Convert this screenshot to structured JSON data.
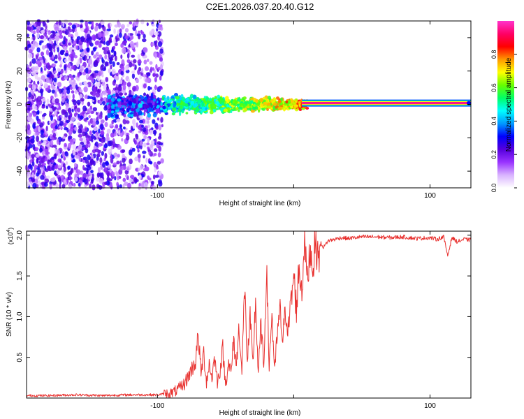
{
  "chart_data": [
    {
      "type": "heatmap",
      "title": "C2E1.2026.037.20.40.G12",
      "xlabel": "Height of straight line (km)",
      "ylabel": "Frequency (Hz)",
      "xlim": [
        -196,
        130
      ],
      "ylim": [
        -50,
        50
      ],
      "x_ticks": [
        -100,
        0,
        100
      ],
      "x_tick_labels": [
        "-100",
        "",
        "100"
      ],
      "y_ticks": [
        -40,
        -20,
        0,
        20,
        40
      ],
      "y_tick_labels": [
        "-40",
        "-20",
        "0",
        "20",
        "40"
      ],
      "colorbar": {
        "label": "Normalized spectral amplitude",
        "range": [
          0,
          1
        ],
        "ticks": [
          0.0,
          0.2,
          0.4,
          0.6,
          0.8
        ],
        "tick_labels": [
          "0.0",
          "0.2",
          "0.4",
          "0.6",
          "0.8"
        ],
        "colors": [
          "#ffffff",
          "#d9b3ff",
          "#9933ff",
          "#5500dd",
          "#0000ff",
          "#0099ff",
          "#00ffff",
          "#00ff66",
          "#66ff00",
          "#ffff00",
          "#ff9900",
          "#ff0000",
          "#ff0066",
          "#ff33cc"
        ]
      },
      "regions": [
        {
          "name": "noise",
          "x_range": [
            -196,
            -96
          ],
          "description_value": "scattered low amplitude 0.1-0.35"
        },
        {
          "name": "transition",
          "x_range": [
            -96,
            10
          ],
          "f_center": 0,
          "f_spread": 4
        },
        {
          "name": "carrier",
          "x_range": [
            10,
            130
          ],
          "f_center": 0,
          "amplitude": 1.0
        }
      ]
    },
    {
      "type": "line",
      "title": "",
      "xlabel": "Height of straight line (km)",
      "ylabel": "SNR (10 * v/v)",
      "y_scale_label": "(x10",
      "y_scale_exp": "4",
      "y_scale_close": ")",
      "xlim": [
        -196,
        130
      ],
      "ylim": [
        0,
        2.05
      ],
      "x_ticks": [
        -100,
        0,
        100
      ],
      "x_tick_labels": [
        "-100",
        "",
        "100"
      ],
      "y_ticks": [
        0.5,
        1.0,
        1.5,
        2.0
      ],
      "y_tick_labels": [
        "0.5",
        "1.0",
        "1.5",
        "2.0"
      ],
      "color": "#e8312f",
      "series": [
        {
          "name": "SNR",
          "x": [
            -196,
            -180,
            -160,
            -140,
            -120,
            -100,
            -90,
            -85,
            -80,
            -75,
            -72,
            -70,
            -68,
            -66,
            -64,
            -62,
            -60,
            -58,
            -56,
            -54,
            -52,
            -50,
            -48,
            -46,
            -44,
            -42,
            -40,
            -38,
            -36,
            -34,
            -32,
            -30,
            -28,
            -26,
            -24,
            -22,
            -20,
            -18,
            -16,
            -14,
            -12,
            -10,
            -8,
            -6,
            -4,
            -2,
            0,
            2,
            4,
            6,
            8,
            10,
            12,
            14,
            16,
            18,
            20,
            22,
            25,
            30,
            35,
            40,
            50,
            60,
            70,
            80,
            90,
            100,
            105,
            110,
            113,
            116,
            120,
            125,
            130
          ],
          "values": [
            0.03,
            0.03,
            0.04,
            0.03,
            0.04,
            0.04,
            0.06,
            0.1,
            0.18,
            0.35,
            0.45,
            0.78,
            0.3,
            0.55,
            0.2,
            0.42,
            0.25,
            0.5,
            0.2,
            0.35,
            0.6,
            0.15,
            0.45,
            0.3,
            0.7,
            0.4,
            0.9,
            0.3,
            1.38,
            0.45,
            0.95,
            0.4,
            1.2,
            0.3,
            0.9,
            0.35,
            1.6,
            0.4,
            1.05,
            0.3,
            0.8,
            1.05,
            0.7,
            1.1,
            0.85,
            1.15,
            1.5,
            1.1,
            1.62,
            1.3,
            2.02,
            1.4,
            1.85,
            1.6,
            1.95,
            1.7,
            1.9,
            1.85,
            1.93,
            1.95,
            1.97,
            1.96,
            1.98,
            1.98,
            1.97,
            1.98,
            1.96,
            1.97,
            1.95,
            1.98,
            1.75,
            1.97,
            1.92,
            1.95,
            1.94
          ]
        }
      ]
    }
  ]
}
